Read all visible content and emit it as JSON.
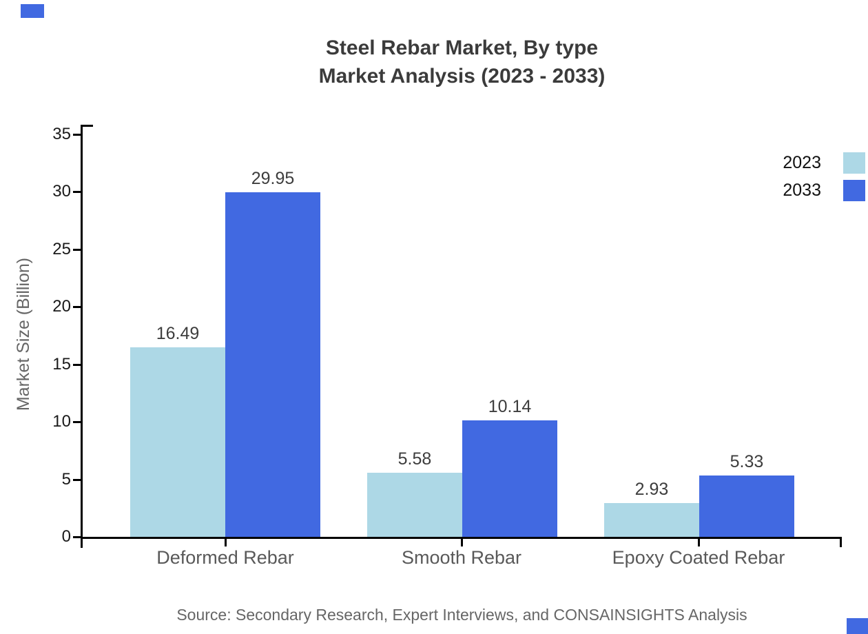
{
  "chart_data": {
    "type": "bar",
    "title_line1": "Steel Rebar Market, By type",
    "title_line2": "Market Analysis (2023 - 2033)",
    "ylabel": "Market Size (Billion)",
    "categories": [
      "Deformed Rebar",
      "Smooth Rebar",
      "Epoxy Coated Rebar"
    ],
    "series": [
      {
        "name": "2023",
        "color": "#ADD8E6",
        "values": [
          16.49,
          5.58,
          2.93
        ]
      },
      {
        "name": "2033",
        "color": "#4169E1",
        "values": [
          29.95,
          10.14,
          5.33
        ]
      }
    ],
    "yticks": [
      0,
      5,
      10,
      15,
      20,
      25,
      30,
      35
    ],
    "ylim": [
      0,
      35
    ],
    "grid": false,
    "value_labels": true,
    "legend_position": "top-right",
    "source": "Source: Secondary Research, Expert Interviews, and CONSAINSIGHTS Analysis"
  },
  "colors": {
    "accent": "#4169E1",
    "series_2023": "#ADD8E6",
    "series_2033": "#4169E1",
    "title_text": "#3b3b3b",
    "axis_text": "#1a1a1a",
    "category_text": "#595959",
    "muted_text": "#666666"
  }
}
